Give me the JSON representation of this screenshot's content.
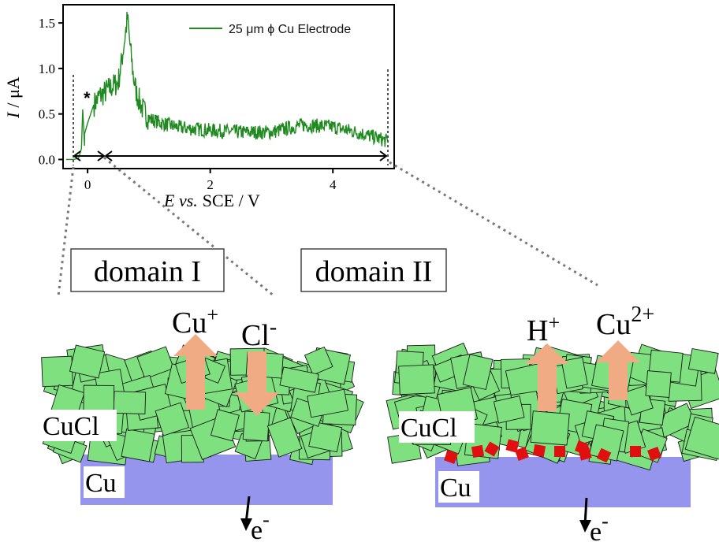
{
  "chart_data": {
    "type": "line",
    "title": "",
    "xlabel_italic": "E vs.",
    "xlabel_rest": "SCE / V",
    "ylabel_italic": "I",
    "ylabel_rest": "/ μA",
    "xlim": [
      -0.4,
      5.0
    ],
    "ylim": [
      -0.1,
      1.7
    ],
    "x_ticks": [
      0,
      2,
      4
    ],
    "y_ticks": [
      "0.0",
      "0.5",
      "1.0",
      "1.5"
    ],
    "legend": "25 μm ϕ Cu Electrode",
    "legend_placement": "top-right",
    "peak_marker": "*",
    "series": [
      {
        "name": "25 μm ϕ Cu Electrode",
        "color": "#1f8a1f",
        "x": [
          -0.35,
          -0.25,
          -0.15,
          -0.1,
          -0.08,
          -0.05,
          -0.05,
          0.0,
          0.05,
          0.1,
          0.15,
          0.2,
          0.25,
          0.3,
          0.4,
          0.5,
          0.55,
          0.6,
          0.65,
          0.7,
          0.75,
          0.8,
          0.9,
          1.0,
          1.2,
          1.5,
          2.0,
          2.5,
          3.0,
          3.5,
          4.0,
          4.5,
          4.9
        ],
        "y": [
          0.0,
          0.0,
          0.01,
          0.12,
          0.55,
          0.15,
          0.28,
          0.4,
          0.5,
          0.6,
          0.65,
          0.7,
          0.72,
          0.75,
          0.8,
          0.85,
          1.05,
          1.3,
          1.55,
          1.2,
          0.9,
          0.72,
          0.55,
          0.45,
          0.4,
          0.35,
          0.32,
          0.3,
          0.3,
          0.38,
          0.36,
          0.28,
          0.2
        ]
      }
    ],
    "domain_arrows": [
      {
        "from": -0.35,
        "to": 0.15
      },
      {
        "from": 0.15,
        "to": 4.95
      }
    ]
  },
  "domain_labels": {
    "left": "domain I",
    "right": "domain II"
  },
  "panel_left": {
    "ion_up_base": "Cu",
    "ion_up_sup": "+",
    "ion_down_base": "Cl",
    "ion_down_sup": "-",
    "layer_label": "CuCl",
    "metal_label": "Cu",
    "electron_base": "e",
    "electron_sup": "-"
  },
  "panel_right": {
    "ion_a_base": "H",
    "ion_a_sup": "+",
    "ion_b_base": "Cu",
    "ion_b_sup": "2+",
    "layer_label": "CuCl",
    "metal_label": "Cu",
    "electron_base": "e",
    "electron_sup": "-"
  },
  "colors": {
    "crystal_fill": "#7ee07e",
    "crystal_stroke": "#1a1a1a",
    "metal": "#9595ee",
    "arrow": "#f0aa84",
    "red_square": "#e01010",
    "curve": "#1f8a1f"
  }
}
